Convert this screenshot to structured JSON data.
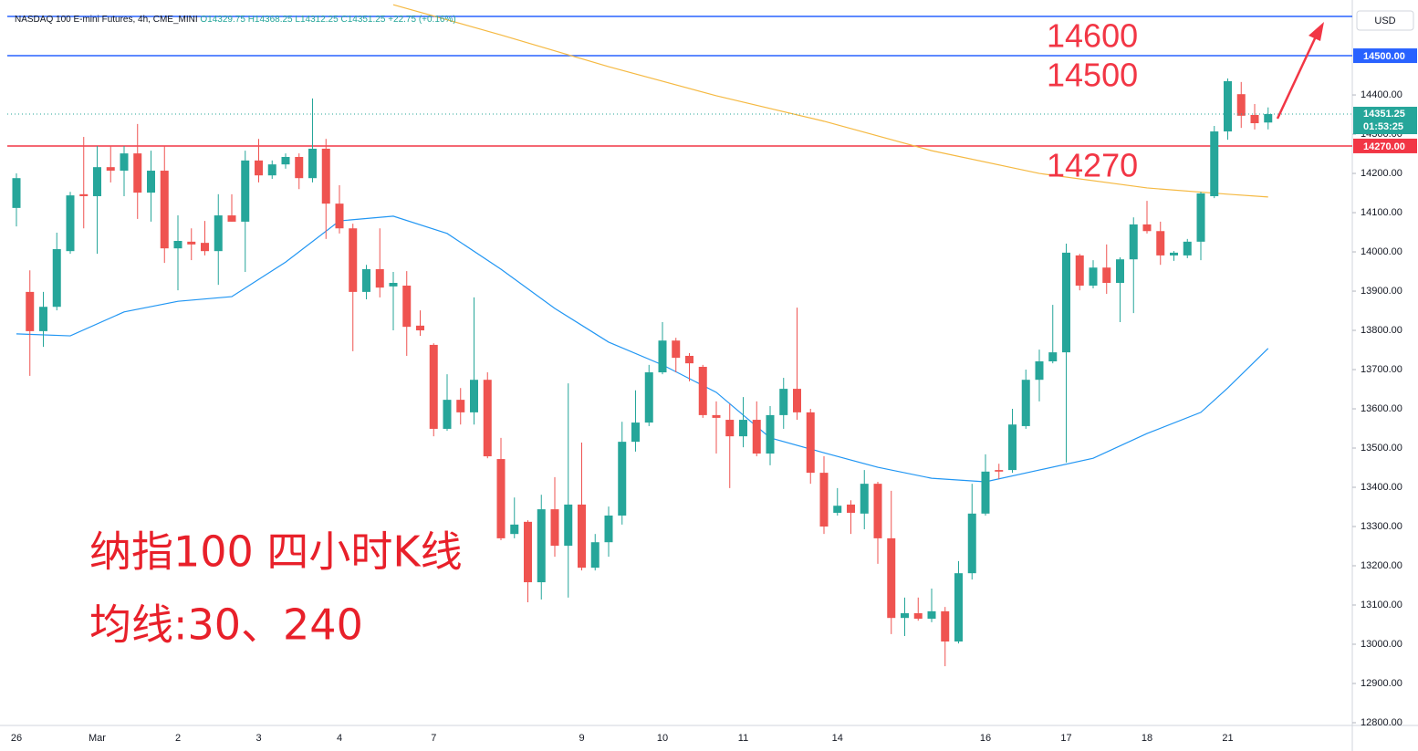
{
  "header": {
    "symbol": "NASDAQ 100 E-mini Futures, 4h, CME_MINI",
    "ohlc": [
      "O14329.75",
      "H14368.25",
      "L14312.25",
      "C14351.25"
    ],
    "change": "+22.75 (+0.16%)",
    "currency": "USD"
  },
  "chart_data": {
    "type": "candlestick",
    "categories": [
      "26",
      null,
      null,
      null,
      null,
      null,
      "Mar",
      null,
      null,
      null,
      null,
      null,
      "2",
      null,
      null,
      null,
      null,
      null,
      "3",
      null,
      null,
      null,
      null,
      null,
      "4",
      null,
      null,
      null,
      null,
      null,
      null,
      "7",
      null,
      null,
      null,
      null,
      null,
      null,
      null,
      null,
      null,
      null,
      "9",
      null,
      null,
      null,
      null,
      null,
      "10",
      null,
      null,
      null,
      null,
      null,
      "11",
      null,
      null,
      null,
      null,
      null,
      null,
      "14",
      null,
      null,
      null,
      null,
      null,
      null,
      null,
      null,
      null,
      null,
      "16",
      null,
      null,
      null,
      null,
      null,
      "17",
      null,
      null,
      null,
      null,
      null,
      "18",
      null,
      null,
      null,
      null,
      null,
      "21",
      null,
      null,
      null
    ],
    "open": [
      14112,
      13898,
      13798,
      13860,
      14002,
      14147,
      14142,
      14216,
      14207,
      14251,
      14151,
      14207,
      14009,
      14026,
      14023,
      14002,
      14093,
      14077,
      14233,
      14195,
      14223,
      14242,
      14188,
      14263,
      14123,
      14060,
      13898,
      13956,
      13912,
      13914,
      13812,
      13763,
      13549,
      13623,
      13591,
      13674,
      13472,
      13281,
      13312,
      13158,
      13344,
      13251,
      13356,
      13195,
      13260,
      13328,
      13516,
      13565,
      13693,
      13774,
      13735,
      13707,
      13584,
      13572,
      13530,
      13572,
      13486,
      13584,
      13651,
      13591,
      13437,
      13335,
      13356,
      13333,
      13409,
      13270,
      13067,
      13079,
      13065,
      13084,
      13007,
      13181,
      13333,
      13444,
      13444,
      13556,
      13674,
      13721,
      13744,
      13991,
      13914,
      13960,
      13921,
      13981,
      14070,
      14053,
      13991,
      13991,
      14026,
      14142,
      14307,
      14402,
      14349,
      14329.75
    ],
    "high": [
      14200,
      13953,
      13898,
      14049,
      14153,
      14293,
      14270,
      14270,
      14270,
      14326,
      14258,
      14270,
      14093,
      14060,
      14079,
      14147,
      14147,
      14258,
      14288,
      14233,
      14251,
      14251,
      14391,
      14288,
      14170,
      14072,
      13967,
      14060,
      13949,
      13951,
      13851,
      13767,
      13688,
      13653,
      13884,
      13693,
      13526,
      13374,
      13316,
      13381,
      13426,
      13665,
      13514,
      13281,
      13351,
      13567,
      13647,
      13712,
      13821,
      13781,
      13742,
      13712,
      13619,
      13612,
      13630,
      13619,
      13607,
      13679,
      13858,
      13600,
      13479,
      13398,
      13367,
      13444,
      13414,
      13391,
      13119,
      13119,
      13142,
      13095,
      13212,
      13409,
      13484,
      13460,
      13600,
      13700,
      13751,
      13865,
      14021,
      13995,
      13979,
      14019,
      13986,
      14088,
      14130,
      14077,
      14002,
      14033,
      14153,
      14321,
      14442,
      14433,
      14377,
      14368.25
    ],
    "low": [
      14065,
      13684,
      13758,
      13851,
      13995,
      14060,
      13995,
      14177,
      14142,
      14084,
      14077,
      13972,
      13902,
      13979,
      13991,
      13916,
      14077,
      13949,
      14177,
      14186,
      14212,
      14160,
      14177,
      14033,
      14047,
      13747,
      13879,
      13884,
      13800,
      13735,
      13786,
      13530,
      13544,
      13560,
      13560,
      13474,
      13265,
      13270,
      13107,
      13114,
      13223,
      13119,
      13188,
      13188,
      13223,
      13305,
      13491,
      13556,
      13688,
      13693,
      13670,
      13577,
      13486,
      13398,
      13502,
      13479,
      13456,
      13549,
      13572,
      13409,
      13281,
      13328,
      13281,
      13293,
      13205,
      13026,
      13021,
      13060,
      13056,
      12944,
      13002,
      13165,
      13328,
      13421,
      13437,
      13549,
      13619,
      13716,
      13463,
      13902,
      13907,
      13893,
      13821,
      13844,
      14047,
      13967,
      13977,
      13984,
      13979,
      14137,
      14286,
      14316,
      14312,
      14312.25
    ],
    "close": [
      14188,
      13798,
      13860,
      14007,
      14144,
      14142,
      14216,
      14207,
      14251,
      14151,
      14207,
      14009,
      14028,
      14019,
      14002,
      14093,
      14077,
      14233,
      14195,
      14223,
      14242,
      14188,
      14263,
      14123,
      14060,
      13898,
      13956,
      13909,
      13921,
      13809,
      13800,
      13549,
      13623,
      13591,
      13674,
      13479,
      13270,
      13305,
      13158,
      13344,
      13251,
      13356,
      13195,
      13260,
      13328,
      13516,
      13565,
      13693,
      13774,
      13730,
      13716,
      13584,
      13577,
      13530,
      13572,
      13486,
      13584,
      13651,
      13591,
      13437,
      13300,
      13353,
      13335,
      13409,
      13270,
      13067,
      13079,
      13065,
      13084,
      13007,
      13181,
      13333,
      13440,
      13440,
      13560,
      13674,
      13721,
      13744,
      13998,
      13914,
      13960,
      13921,
      13981,
      14070,
      14053,
      13991,
      13998,
      14026,
      14149,
      14307,
      14435,
      14347,
      14328,
      14351.25
    ],
    "up_color": "#26a69a",
    "down_color": "#ef5350",
    "moving_averages": [
      {
        "color": "#2196f3",
        "x": [
          0,
          4,
          8,
          12,
          16,
          20,
          24,
          28,
          32,
          36,
          40,
          44,
          48,
          52,
          56,
          60,
          64,
          68,
          72,
          76,
          80,
          84,
          88,
          90,
          93
        ],
        "values": [
          13791,
          13786,
          13847,
          13874,
          13886,
          13974,
          14079,
          14091,
          14047,
          13956,
          13856,
          13770,
          13712,
          13642,
          13526,
          13488,
          13451,
          13423,
          13414,
          13444,
          13474,
          13537,
          13591,
          13653,
          13754
        ]
      },
      {
        "color": "#f5b942",
        "x": [
          28,
          36,
          44,
          52,
          60,
          68,
          76,
          84,
          90,
          93
        ],
        "values": [
          14630,
          14553,
          14472,
          14398,
          14333,
          14258,
          14200,
          14163,
          14147,
          14140
        ]
      }
    ],
    "levels": [
      {
        "value": 14600,
        "color": "#2962ff",
        "annotation": "14600"
      },
      {
        "value": 14500,
        "color": "#2962ff",
        "label": "14500.00",
        "annotation": "14500"
      },
      {
        "value": 14270,
        "color": "#f23645",
        "label": "14270.00",
        "annotation": "14270"
      }
    ],
    "last": {
      "value": 14351.25,
      "label": "14351.25",
      "countdown": "01:53:25",
      "color": "#26a69a"
    },
    "ylim": [
      12793,
      14642
    ],
    "yticks": [
      {
        "value": 12800,
        "label": "12800.00"
      },
      {
        "value": 12900,
        "label": "12900.00"
      },
      {
        "value": 13000,
        "label": "13000.00"
      },
      {
        "value": 13100,
        "label": "13100.00"
      },
      {
        "value": 13200,
        "label": "13200.00"
      },
      {
        "value": 13300,
        "label": "13300.00"
      },
      {
        "value": 13400,
        "label": "13400.00"
      },
      {
        "value": 13500,
        "label": "13500.00"
      },
      {
        "value": 13600,
        "label": "13600.00"
      },
      {
        "value": 13700,
        "label": "13700.00"
      },
      {
        "value": 13800,
        "label": "13800.00"
      },
      {
        "value": 13900,
        "label": "13900.00"
      },
      {
        "value": 14000,
        "label": "14000.00"
      },
      {
        "value": 14100,
        "label": "14100.00"
      },
      {
        "value": 14200,
        "label": "14200.00"
      },
      {
        "value": 14300,
        "label": "14300.00"
      },
      {
        "value": 14400,
        "label": "14400.00"
      }
    ],
    "notes": [
      "纳指100 四小时K线",
      "均线:30、240"
    ]
  }
}
